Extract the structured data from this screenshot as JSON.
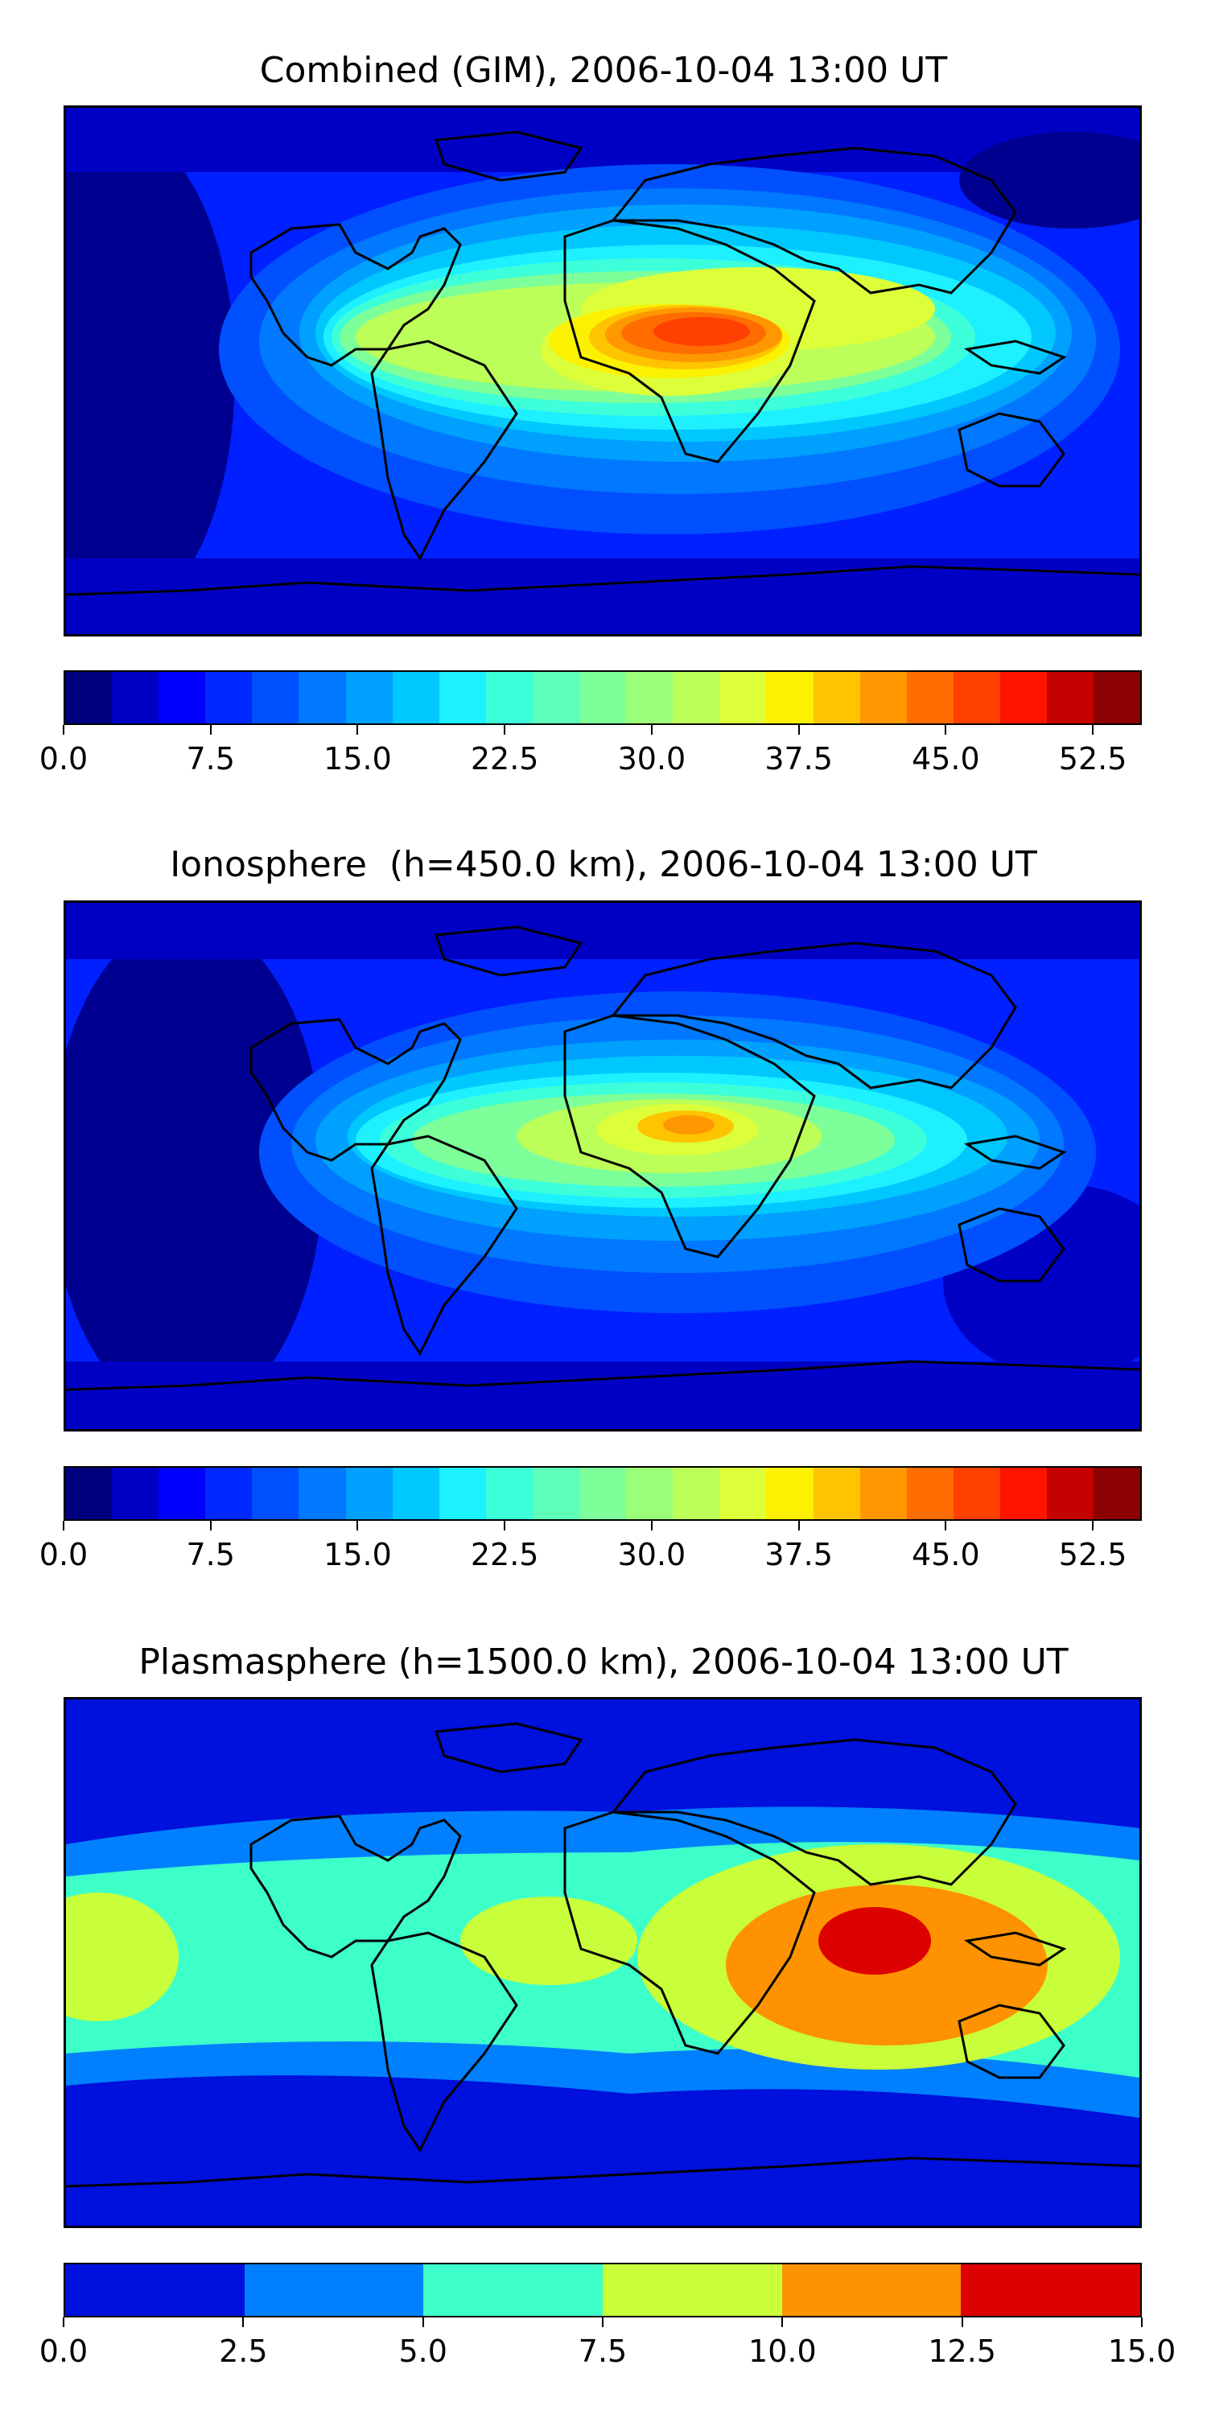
{
  "panels": [
    {
      "title": "Combined (GIM), 2006-10-04 13:00 UT",
      "map_type": "combined",
      "colorbar": {
        "colors": [
          "#00007f",
          "#0000c4",
          "#0000ff",
          "#0028ff",
          "#0050ff",
          "#0078ff",
          "#00a0ff",
          "#00c8ff",
          "#1df0ff",
          "#3dffd9",
          "#5dffb9",
          "#7dff99",
          "#9cff79",
          "#bcff59",
          "#dcff39",
          "#fbf100",
          "#ffc400",
          "#ff9800",
          "#ff6c00",
          "#ff4000",
          "#ff1400",
          "#c40000",
          "#8b0000"
        ],
        "tick_labels": [
          "0.0",
          "7.5",
          "15.0",
          "22.5",
          "30.0",
          "37.5",
          "45.0",
          "52.5"
        ],
        "tick_values": [
          0,
          7.5,
          15,
          22.5,
          30,
          37.5,
          45,
          52.5
        ],
        "vmin": 0,
        "vmax": 55
      }
    },
    {
      "title": "Ionosphere  (h=450.0 km), 2006-10-04 13:00 UT",
      "map_type": "ionosphere",
      "colorbar": {
        "colors": [
          "#00007f",
          "#0000c4",
          "#0000ff",
          "#0028ff",
          "#0050ff",
          "#0078ff",
          "#00a0ff",
          "#00c8ff",
          "#1df0ff",
          "#3dffd9",
          "#5dffb9",
          "#7dff99",
          "#9cff79",
          "#bcff59",
          "#dcff39",
          "#fbf100",
          "#ffc400",
          "#ff9800",
          "#ff6c00",
          "#ff4000",
          "#ff1400",
          "#c40000",
          "#8b0000"
        ],
        "tick_labels": [
          "0.0",
          "7.5",
          "15.0",
          "22.5",
          "30.0",
          "37.5",
          "45.0",
          "52.5"
        ],
        "tick_values": [
          0,
          7.5,
          15,
          22.5,
          30,
          37.5,
          45,
          52.5
        ],
        "vmin": 0,
        "vmax": 55
      }
    },
    {
      "title": "Plasmasphere (h=1500.0 km), 2006-10-04 13:00 UT",
      "map_type": "plasmasphere",
      "colorbar": {
        "colors": [
          "#0010dd",
          "#0080ff",
          "#3dffc9",
          "#c8ff3a",
          "#ff9200",
          "#dd0000"
        ],
        "tick_labels": [
          "0.0",
          "2.5",
          "5.0",
          "7.5",
          "10.0",
          "12.5",
          "15.0"
        ],
        "tick_values": [
          0,
          2.5,
          5,
          7.5,
          10,
          12.5,
          15
        ],
        "vmin": 0,
        "vmax": 15
      }
    }
  ]
}
